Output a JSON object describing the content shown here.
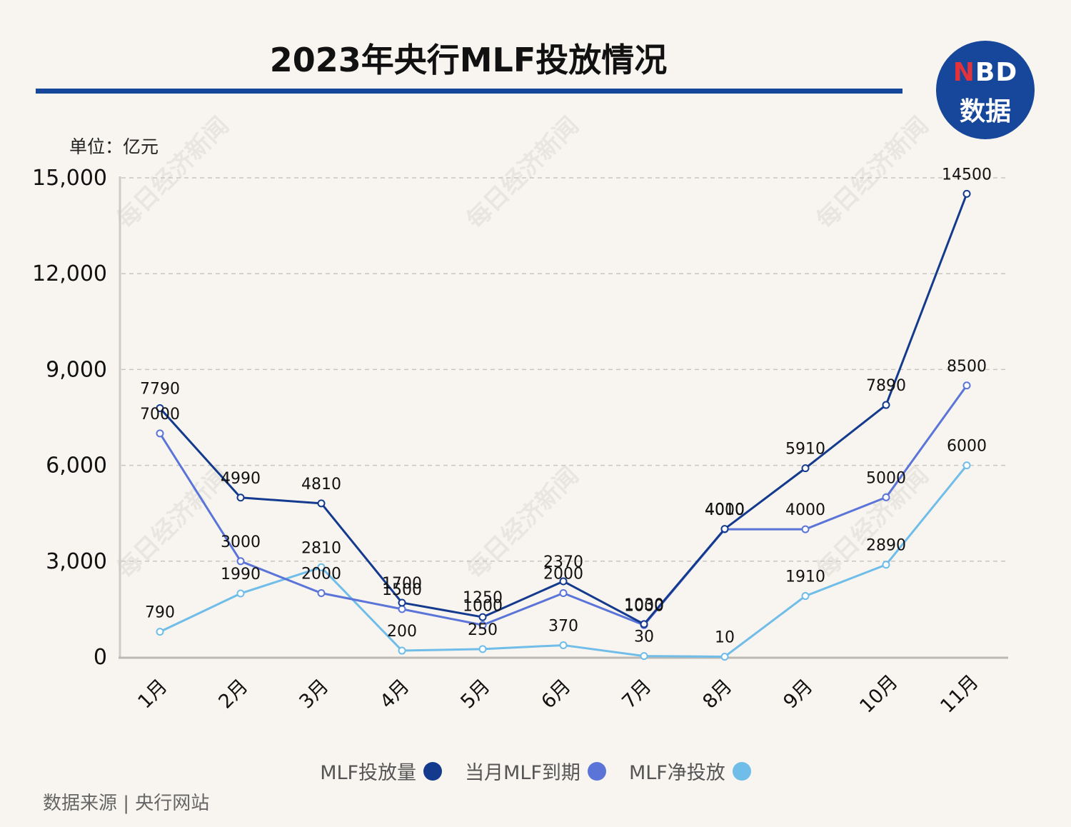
{
  "header": {
    "title": "2023年央行MLF投放情况",
    "logo_line1_accent": "N",
    "logo_line1_rest": "BD",
    "logo_line2": "数据"
  },
  "unit_label": "单位：亿元",
  "source": "数据来源 | 央行网站",
  "watermark": "每日经济新闻",
  "colors": {
    "mlf_issuance": "#143a8e",
    "mlf_maturity": "#5a74d8",
    "mlf_net": "#6fbde8",
    "title_rule": "#16479a"
  },
  "chart_data": {
    "type": "line",
    "title": "2023年央行MLF投放情况",
    "xlabel": "",
    "ylabel": "单位：亿元",
    "categories": [
      "1月",
      "2月",
      "3月",
      "4月",
      "5月",
      "6月",
      "7月",
      "8月",
      "9月",
      "10月",
      "11月"
    ],
    "y_ticks": [
      "0",
      "3,000",
      "6,000",
      "9,000",
      "12,000",
      "15,000"
    ],
    "ylim": [
      0,
      15000
    ],
    "grid": "horizontal dashed",
    "legend_position": "bottom-center",
    "series": [
      {
        "name": "MLF投放量",
        "color": "#143a8e",
        "values": [
          7790,
          4990,
          4810,
          1700,
          1250,
          2370,
          1030,
          4010,
          5910,
          7890,
          14500
        ]
      },
      {
        "name": "当月MLF到期",
        "color": "#5a74d8",
        "values": [
          7000,
          3000,
          2000,
          1500,
          1000,
          2000,
          1000,
          4000,
          4000,
          5000,
          8500
        ]
      },
      {
        "name": "MLF净投放",
        "color": "#6fbde8",
        "values": [
          790,
          1990,
          2810,
          200,
          250,
          370,
          30,
          10,
          1910,
          2890,
          6000
        ]
      }
    ]
  }
}
